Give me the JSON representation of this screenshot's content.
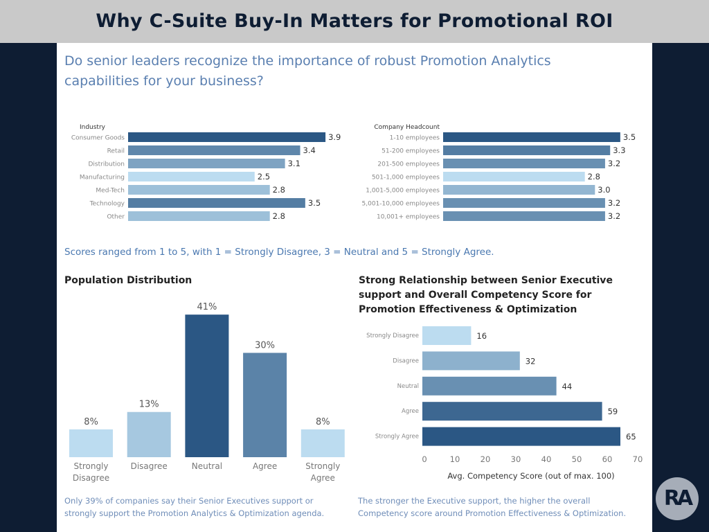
{
  "header": {
    "title": "Why C-Suite Buy-In Matters for Promotional ROI"
  },
  "question": "Do senior leaders recognize the importance of robust Promotion Analytics capabilities for your business?",
  "scale_note": "Scores ranged from 1 to 5, with 1 = Strongly Disagree, 3 = Neutral and 5 = Strongly Agree.",
  "logo_text": "RA",
  "chart_data": [
    {
      "type": "bar",
      "orientation": "horizontal",
      "title": "Industry",
      "categories": [
        "Consumer Goods",
        "Retail",
        "Distribution",
        "Manufacturing",
        "Med-Tech",
        "Technology",
        "Other"
      ],
      "values": [
        3.9,
        3.4,
        3.1,
        2.5,
        2.8,
        3.5,
        2.8
      ],
      "labels": [
        "3.9",
        "3.4",
        "3.1",
        "2.5",
        "2.8",
        "3.5",
        "2.8"
      ]
    },
    {
      "type": "bar",
      "orientation": "horizontal",
      "title": "Company Headcount",
      "categories": [
        "1-10 employees",
        "51-200 employees",
        "201-500 employees",
        "501-1,000 employees",
        "1,001-5,000 employees",
        "5,001-10,000 employees",
        "10,001+ employees"
      ],
      "values": [
        3.5,
        3.3,
        3.2,
        2.8,
        3.0,
        3.2,
        3.2
      ],
      "labels": [
        "3.5",
        "3.3",
        "3.2",
        "2.8",
        "3.0",
        "3.2",
        "3.2"
      ]
    },
    {
      "type": "bar",
      "orientation": "vertical",
      "title": "Population Distribution",
      "categories": [
        "Strongly Disagree",
        "Disagree",
        "Neutral",
        "Agree",
        "Strongly Agree"
      ],
      "values": [
        8,
        13,
        41,
        30,
        8
      ],
      "labels": [
        "8%",
        "13%",
        "41%",
        "30%",
        "8%"
      ],
      "footnote": "Only 39% of companies say their Senior Executives support or strongly support the Promotion Analytics & Optimization agenda."
    },
    {
      "type": "bar",
      "orientation": "horizontal",
      "title": "Strong Relationship between Senior Executive support and Overall Competency Score for Promotion Effectiveness & Optimization",
      "categories": [
        "Strongly Disagree",
        "Disagree",
        "Neutral",
        "Agree",
        "Strongly Agree"
      ],
      "values": [
        16,
        32,
        44,
        59,
        65
      ],
      "labels": [
        "16",
        "32",
        "44",
        "59",
        "65"
      ],
      "xlabel": "Avg. Competency Score (out of max. 100)",
      "xlim": [
        0,
        70
      ],
      "xticks": [
        "0",
        "10",
        "20",
        "30",
        "40",
        "50",
        "60",
        "70"
      ],
      "footnote": "The stronger the Executive support, the higher the overall Competency score around Promotion Effectiveness & Optimization."
    }
  ],
  "colors": {
    "light": "#bcdcf0",
    "dark": "#2b5784",
    "background": "#0e1d33",
    "header": "#c9c9c9"
  }
}
